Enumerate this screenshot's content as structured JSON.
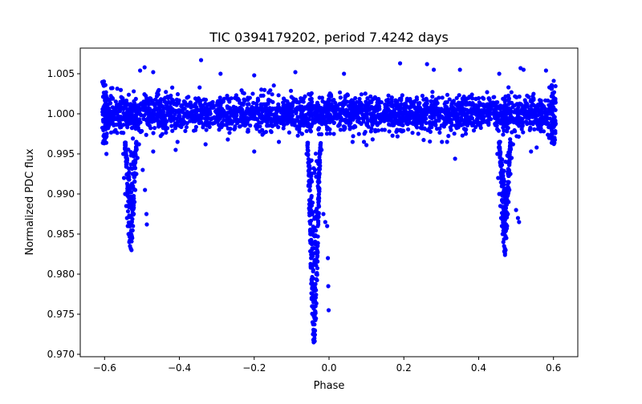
{
  "chart_data": {
    "type": "scatter",
    "title": "TIC 0394179202, period 7.4242 days",
    "xlabel": "Phase",
    "ylabel": "Normalized PDC flux",
    "xlim": [
      -0.665,
      0.665
    ],
    "ylim": [
      0.9697,
      1.0082
    ],
    "xticks": [
      -0.6,
      -0.4,
      -0.2,
      0.0,
      0.2,
      0.4,
      0.6
    ],
    "xtick_labels": [
      "−0.6",
      "−0.4",
      "−0.2",
      "0.0",
      "0.2",
      "0.4",
      "0.6"
    ],
    "yticks": [
      0.97,
      0.975,
      0.98,
      0.985,
      0.99,
      0.995,
      1.0,
      1.005
    ],
    "ytick_labels": [
      "0.970",
      "0.975",
      "0.980",
      "0.985",
      "0.990",
      "0.995",
      "1.000",
      "1.005"
    ],
    "grid": false,
    "marker_color": "#0000ff",
    "series": [
      {
        "phase_range": [
          -0.6,
          0.6
        ],
        "baseline_flux": 1.0,
        "baseline_scatter": 0.0015,
        "eclipses": [
          {
            "kind": "primary",
            "phase_center": -0.04,
            "min_flux": 0.9715
          },
          {
            "kind": "secondary",
            "phase_center": -0.53,
            "min_flux": 0.983
          },
          {
            "kind": "secondary",
            "phase_center": 0.47,
            "min_flux": 0.983
          }
        ],
        "points": [
          [
            -0.493,
            1.0058
          ],
          [
            -0.505,
            1.0054
          ],
          [
            -0.47,
            1.0052
          ],
          [
            -0.342,
            1.0067
          ],
          [
            -0.29,
            1.005
          ],
          [
            -0.2,
            1.0048
          ],
          [
            -0.09,
            1.0052
          ],
          [
            0.04,
            1.005
          ],
          [
            0.19,
            1.0063
          ],
          [
            0.262,
            1.0062
          ],
          [
            0.28,
            1.0055
          ],
          [
            0.35,
            1.0055
          ],
          [
            0.455,
            1.005
          ],
          [
            0.512,
            1.0057
          ],
          [
            0.52,
            1.0055
          ],
          [
            0.58,
            1.0054
          ],
          [
            -0.595,
            0.995
          ],
          [
            -0.47,
            0.9953
          ],
          [
            -0.41,
            0.9955
          ],
          [
            -0.33,
            0.9962
          ],
          [
            -0.2,
            0.9953
          ],
          [
            0.1,
            0.9961
          ],
          [
            0.337,
            0.9944
          ],
          [
            0.48,
            0.9952
          ],
          [
            0.54,
            0.9953
          ],
          [
            0.555,
            0.9958
          ],
          [
            -0.55,
            0.995
          ],
          [
            -0.548,
            0.992
          ],
          [
            -0.545,
            0.99
          ],
          [
            -0.542,
            0.9885
          ],
          [
            -0.54,
            0.987
          ],
          [
            -0.538,
            0.986
          ],
          [
            -0.536,
            0.985
          ],
          [
            -0.534,
            0.984
          ],
          [
            -0.532,
            0.9835
          ],
          [
            -0.53,
            0.9832
          ],
          [
            -0.528,
            0.983
          ],
          [
            -0.526,
            0.9845
          ],
          [
            -0.524,
            0.986
          ],
          [
            -0.522,
            0.9875
          ],
          [
            -0.52,
            0.989
          ],
          [
            -0.518,
            0.9905
          ],
          [
            -0.515,
            0.9925
          ],
          [
            -0.512,
            0.9945
          ],
          [
            -0.508,
            0.9962
          ],
          [
            -0.498,
            0.993
          ],
          [
            -0.492,
            0.9905
          ],
          [
            -0.488,
            0.9875
          ],
          [
            -0.487,
            0.9862
          ],
          [
            -0.06,
            0.995
          ],
          [
            -0.055,
            0.991
          ],
          [
            -0.052,
            0.988
          ],
          [
            -0.05,
            0.985
          ],
          [
            -0.048,
            0.982
          ],
          [
            -0.046,
            0.979
          ],
          [
            -0.045,
            0.976
          ],
          [
            -0.044,
            0.974
          ],
          [
            -0.043,
            0.9725
          ],
          [
            -0.042,
            0.9718
          ],
          [
            -0.041,
            0.9715
          ],
          [
            -0.04,
            0.9716
          ],
          [
            -0.039,
            0.972
          ],
          [
            -0.038,
            0.973
          ],
          [
            -0.037,
            0.9745
          ],
          [
            -0.036,
            0.976
          ],
          [
            -0.035,
            0.978
          ],
          [
            -0.034,
            0.98
          ],
          [
            -0.032,
            0.983
          ],
          [
            -0.03,
            0.986
          ],
          [
            -0.028,
            0.989
          ],
          [
            -0.026,
            0.9915
          ],
          [
            -0.024,
            0.9935
          ],
          [
            -0.02,
            0.9955
          ],
          [
            -0.015,
            0.9875
          ],
          [
            -0.01,
            0.9865
          ],
          [
            -0.005,
            0.986
          ],
          [
            -0.003,
            0.982
          ],
          [
            -0.002,
            0.9785
          ],
          [
            -0.001,
            0.9755
          ],
          [
            0.45,
            0.995
          ],
          [
            0.452,
            0.992
          ],
          [
            0.455,
            0.99
          ],
          [
            0.458,
            0.9885
          ],
          [
            0.46,
            0.987
          ],
          [
            0.462,
            0.986
          ],
          [
            0.464,
            0.985
          ],
          [
            0.466,
            0.984
          ],
          [
            0.468,
            0.9835
          ],
          [
            0.47,
            0.9832
          ],
          [
            0.472,
            0.983
          ],
          [
            0.474,
            0.9845
          ],
          [
            0.476,
            0.986
          ],
          [
            0.478,
            0.9875
          ],
          [
            0.48,
            0.989
          ],
          [
            0.482,
            0.9905
          ],
          [
            0.485,
            0.9925
          ],
          [
            0.488,
            0.9945
          ],
          [
            0.492,
            0.9962
          ],
          [
            0.5,
            0.988
          ],
          [
            0.505,
            0.987
          ],
          [
            0.508,
            0.9865
          ]
        ]
      }
    ]
  }
}
